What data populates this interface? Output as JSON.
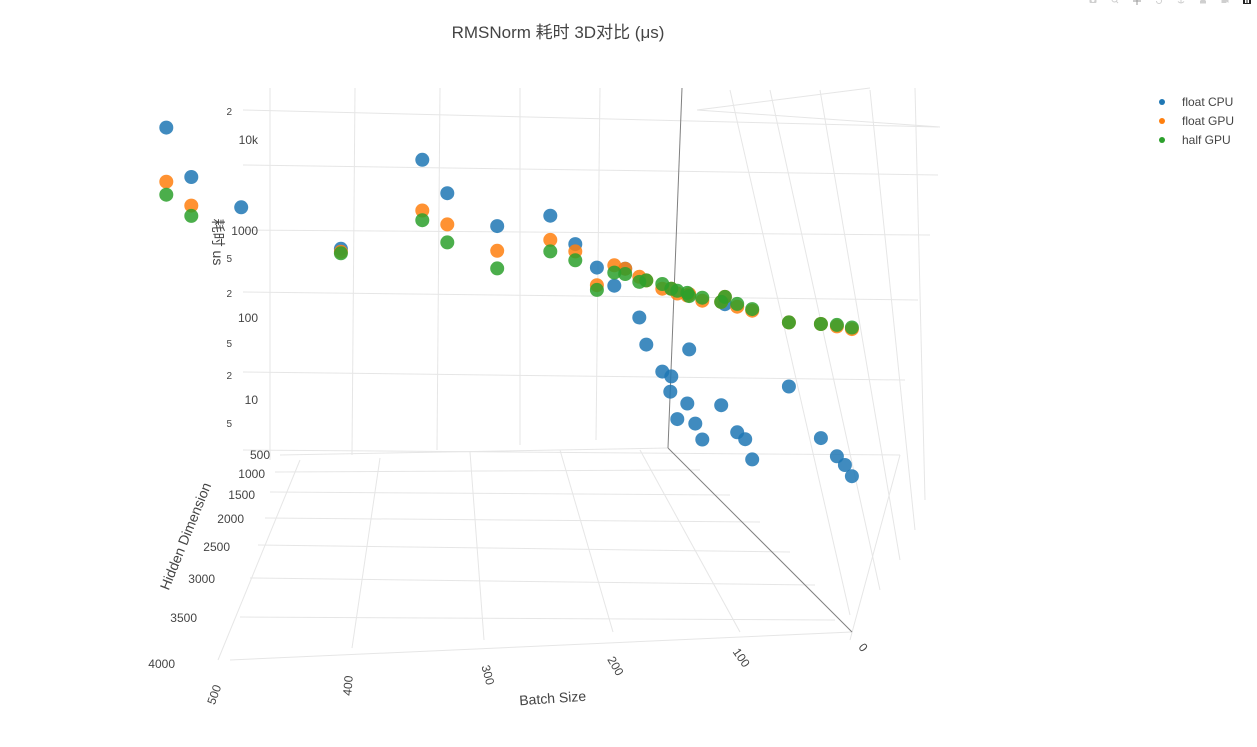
{
  "chart_data": {
    "type": "scatter",
    "title": "RMSNorm 耗时 3D对比 (μs)",
    "xaxis": {
      "title": "Batch Size",
      "ticks": [
        "0",
        "100",
        "200",
        "300",
        "400",
        "500"
      ]
    },
    "yaxis": {
      "title": "Hidden Dimension",
      "ticks": [
        "500",
        "1000",
        "1500",
        "2000",
        "2500",
        "3000",
        "3500",
        "4000"
      ]
    },
    "zaxis": {
      "title": "耗时 us",
      "type": "log",
      "major_ticks": [
        "10",
        "100",
        "1000",
        "10k"
      ],
      "minor_ticks": [
        "5",
        "2",
        "5",
        "2",
        "5",
        "2",
        "5",
        "2",
        "5",
        "2"
      ]
    },
    "legend": {
      "position": "top-right"
    },
    "series": [
      {
        "name": "float CPU",
        "color": "#1f77b4",
        "points": [
          {
            "x": 512,
            "y": 512,
            "z": 14000
          },
          {
            "x": 512,
            "y": 1024,
            "z": 4500
          },
          {
            "x": 512,
            "y": 2048,
            "z": 2600
          },
          {
            "x": 512,
            "y": 4096,
            "z": 1400
          },
          {
            "x": 256,
            "y": 512,
            "z": 5000
          },
          {
            "x": 256,
            "y": 1024,
            "z": 2400
          },
          {
            "x": 256,
            "y": 2048,
            "z": 1300
          },
          {
            "x": 256,
            "y": 4096,
            "z": 700
          },
          {
            "x": 128,
            "y": 512,
            "z": 1100
          },
          {
            "x": 128,
            "y": 1024,
            "z": 600
          },
          {
            "x": 128,
            "y": 2048,
            "z": 400
          },
          {
            "x": 128,
            "y": 4096,
            "z": 250
          },
          {
            "x": 64,
            "y": 512,
            "z": 180
          },
          {
            "x": 64,
            "y": 1024,
            "z": 90
          },
          {
            "x": 64,
            "y": 2048,
            "z": 50
          },
          {
            "x": 64,
            "y": 4096,
            "z": 30
          },
          {
            "x": 32,
            "y": 512,
            "z": 40
          },
          {
            "x": 32,
            "y": 1024,
            "z": 20
          },
          {
            "x": 32,
            "y": 2048,
            "z": 12
          },
          {
            "x": 32,
            "y": 4096,
            "z": 8
          },
          {
            "x": 16,
            "y": 512,
            "z": 20
          },
          {
            "x": 16,
            "y": 1024,
            "z": 10
          },
          {
            "x": 16,
            "y": 2048,
            "z": 6
          },
          {
            "x": 16,
            "y": 4096,
            "z": 5
          },
          {
            "x": 8,
            "y": 512,
            "z": 12
          },
          {
            "x": 8,
            "y": 1024,
            "z": 6
          },
          {
            "x": 8,
            "y": 2048,
            "z": 5
          },
          {
            "x": 8,
            "y": 4096,
            "z": 4
          },
          {
            "x": 1,
            "y": 512,
            "z": 6
          },
          {
            "x": 1,
            "y": 1024,
            "z": 4
          },
          {
            "x": 1,
            "y": 2048,
            "z": 3
          },
          {
            "x": 1,
            "y": 4096,
            "z": 3
          }
        ]
      },
      {
        "name": "float GPU",
        "color": "#ff7f0e",
        "points": [
          {
            "x": 512,
            "y": 512,
            "z": 3600
          },
          {
            "x": 512,
            "y": 1024,
            "z": 2200
          },
          {
            "x": 512,
            "y": 4096,
            "z": 1300
          },
          {
            "x": 256,
            "y": 512,
            "z": 1400
          },
          {
            "x": 256,
            "y": 1024,
            "z": 1100
          },
          {
            "x": 256,
            "y": 2048,
            "z": 700
          },
          {
            "x": 256,
            "y": 4096,
            "z": 450
          },
          {
            "x": 128,
            "y": 512,
            "z": 600
          },
          {
            "x": 128,
            "y": 1024,
            "z": 500
          },
          {
            "x": 128,
            "y": 2048,
            "z": 400
          },
          {
            "x": 128,
            "y": 4096,
            "z": 300
          },
          {
            "x": 64,
            "y": 512,
            "z": 300
          },
          {
            "x": 64,
            "y": 1024,
            "z": 250
          },
          {
            "x": 64,
            "y": 2048,
            "z": 200
          },
          {
            "x": 64,
            "y": 4096,
            "z": 150
          },
          {
            "x": 32,
            "y": 512,
            "z": 200
          },
          {
            "x": 32,
            "y": 1024,
            "z": 180
          },
          {
            "x": 32,
            "y": 2048,
            "z": 160
          },
          {
            "x": 32,
            "y": 4096,
            "z": 140
          },
          {
            "x": 16,
            "y": 512,
            "z": 160
          },
          {
            "x": 16,
            "y": 1024,
            "z": 150
          },
          {
            "x": 16,
            "y": 2048,
            "z": 140
          },
          {
            "x": 16,
            "y": 4096,
            "z": 130
          },
          {
            "x": 1,
            "y": 512,
            "z": 140
          },
          {
            "x": 1,
            "y": 1024,
            "z": 130
          },
          {
            "x": 1,
            "y": 2048,
            "z": 125
          },
          {
            "x": 1,
            "y": 4096,
            "z": 120
          }
        ]
      },
      {
        "name": "half GPU",
        "color": "#2ca02c",
        "points": [
          {
            "x": 512,
            "y": 512,
            "z": 2600
          },
          {
            "x": 512,
            "y": 1024,
            "z": 1700
          },
          {
            "x": 512,
            "y": 4096,
            "z": 1250
          },
          {
            "x": 256,
            "y": 512,
            "z": 1100
          },
          {
            "x": 256,
            "y": 1024,
            "z": 700
          },
          {
            "x": 256,
            "y": 2048,
            "z": 450
          },
          {
            "x": 256,
            "y": 4096,
            "z": 400
          },
          {
            "x": 128,
            "y": 512,
            "z": 450
          },
          {
            "x": 128,
            "y": 1024,
            "z": 400
          },
          {
            "x": 128,
            "y": 2048,
            "z": 350
          },
          {
            "x": 128,
            "y": 4096,
            "z": 300
          },
          {
            "x": 64,
            "y": 512,
            "z": 250
          },
          {
            "x": 64,
            "y": 1024,
            "z": 220
          },
          {
            "x": 64,
            "y": 2048,
            "z": 190
          },
          {
            "x": 64,
            "y": 4096,
            "z": 150
          },
          {
            "x": 32,
            "y": 512,
            "z": 200
          },
          {
            "x": 32,
            "y": 1024,
            "z": 180
          },
          {
            "x": 32,
            "y": 2048,
            "z": 160
          },
          {
            "x": 32,
            "y": 4096,
            "z": 140
          },
          {
            "x": 16,
            "y": 512,
            "z": 180
          },
          {
            "x": 16,
            "y": 1024,
            "z": 160
          },
          {
            "x": 16,
            "y": 2048,
            "z": 150
          },
          {
            "x": 16,
            "y": 4096,
            "z": 135
          },
          {
            "x": 1,
            "y": 512,
            "z": 150
          },
          {
            "x": 1,
            "y": 1024,
            "z": 140
          },
          {
            "x": 1,
            "y": 2048,
            "z": 130
          },
          {
            "x": 1,
            "y": 4096,
            "z": 125
          }
        ]
      }
    ]
  },
  "modebar": {
    "icons": [
      "camera-icon",
      "zoom-icon",
      "pan-icon",
      "orbit-rotate-icon",
      "turntable-rotate-icon",
      "home-icon",
      "reset-camera-icon",
      "plotly-logo-icon"
    ]
  }
}
